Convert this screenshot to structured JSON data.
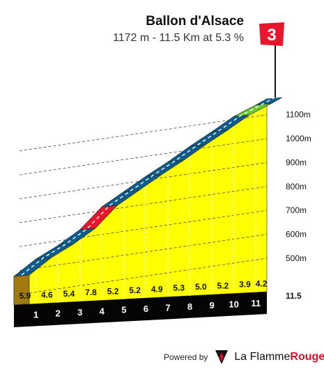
{
  "header": {
    "title": "Ballon d'Alsace",
    "subtitle": "1172 m - 11.5 Km at 5.3 %"
  },
  "category_flag": {
    "label": "3",
    "color": "#e8152c"
  },
  "footer": {
    "powered_label": "Powered by",
    "brand_part1": "La Flamme",
    "brand_part2": "Rouge",
    "logo_icon": "flame-logo-icon"
  },
  "colors": {
    "fill": "#ffff00",
    "side": "#a07b12",
    "base": "#050505",
    "blue": "#0d5c8c",
    "red": "#e8152c",
    "green": "#6cc933"
  },
  "chart_data": {
    "type": "area",
    "title": "Ballon d'Alsace",
    "subtitle": "1172 m - 11.5 Km at 5.3 %",
    "x_unit": "km",
    "y_unit": "m",
    "x_range": [
      0,
      11.5
    ],
    "y_range": [
      430,
      1172
    ],
    "km_ticks": [
      "1",
      "2",
      "3",
      "4",
      "5",
      "6",
      "7",
      "8",
      "9",
      "10",
      "11"
    ],
    "distance_end_label": "11.5",
    "elevation_ticks": [
      500,
      600,
      700,
      800,
      900,
      1000,
      1100
    ],
    "elevation_tick_labels": [
      "500m",
      "600m",
      "700m",
      "800m",
      "900m",
      "1000m",
      "1100m"
    ],
    "segments": [
      {
        "start_km": 0,
        "end_km": 1,
        "gradient": "5.9",
        "color": "blue"
      },
      {
        "start_km": 1,
        "end_km": 2,
        "gradient": "4.6",
        "color": "blue"
      },
      {
        "start_km": 2,
        "end_km": 3,
        "gradient": "5.4",
        "color": "blue"
      },
      {
        "start_km": 3,
        "end_km": 4,
        "gradient": "7.8",
        "color": "red"
      },
      {
        "start_km": 4,
        "end_km": 5,
        "gradient": "5.2",
        "color": "blue"
      },
      {
        "start_km": 5,
        "end_km": 6,
        "gradient": "5.2",
        "color": "blue"
      },
      {
        "start_km": 6,
        "end_km": 7,
        "gradient": "4.9",
        "color": "blue"
      },
      {
        "start_km": 7,
        "end_km": 8,
        "gradient": "5.3",
        "color": "blue"
      },
      {
        "start_km": 8,
        "end_km": 9,
        "gradient": "5.0",
        "color": "blue"
      },
      {
        "start_km": 9,
        "end_km": 10,
        "gradient": "5.2",
        "color": "blue"
      },
      {
        "start_km": 10,
        "end_km": 11,
        "gradient": "3.9",
        "color": "green"
      },
      {
        "start_km": 11,
        "end_km": 11.5,
        "gradient": "4.2",
        "color": "blue"
      }
    ]
  }
}
